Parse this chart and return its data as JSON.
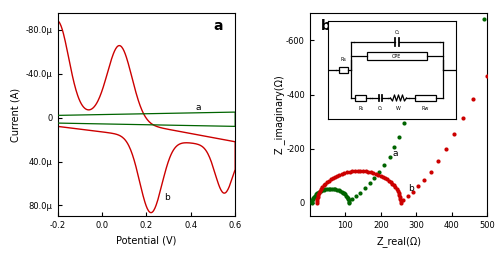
{
  "panel_a": {
    "label": "a",
    "xlabel": "Potential (V)",
    "ylabel": "Current (A)",
    "xlim": [
      -0.2,
      0.6
    ],
    "ylim_top": -9.5e-05,
    "ylim_bottom": 9e-05,
    "yticks": [
      -8e-05,
      -4e-05,
      0,
      4e-05,
      8e-05
    ],
    "ytick_labels": [
      "-80.0μ",
      "-40.0μ",
      "0",
      "40.0μ",
      "80.0μ"
    ],
    "xticks": [
      -0.2,
      0.0,
      0.2,
      0.4,
      0.6
    ],
    "curve_a_color": "#006400",
    "curve_b_color": "#cc0000",
    "label_a": "a",
    "label_b": "b"
  },
  "panel_b": {
    "label": "b",
    "xlabel": "Z_real(Ω)",
    "ylabel": "Z _imaginary(Ω)",
    "xlim": [
      0,
      500
    ],
    "ylim_top": -700,
    "ylim_bottom": 50,
    "yticks": [
      0,
      -200,
      -400,
      -600
    ],
    "ytick_labels": [
      "0",
      "-200",
      "-400",
      "-600"
    ],
    "xticks": [
      100,
      200,
      300,
      400,
      500
    ],
    "curve_a_color": "#006400",
    "curve_b_color": "#cc0000",
    "label_a": "a",
    "label_b": "b"
  }
}
